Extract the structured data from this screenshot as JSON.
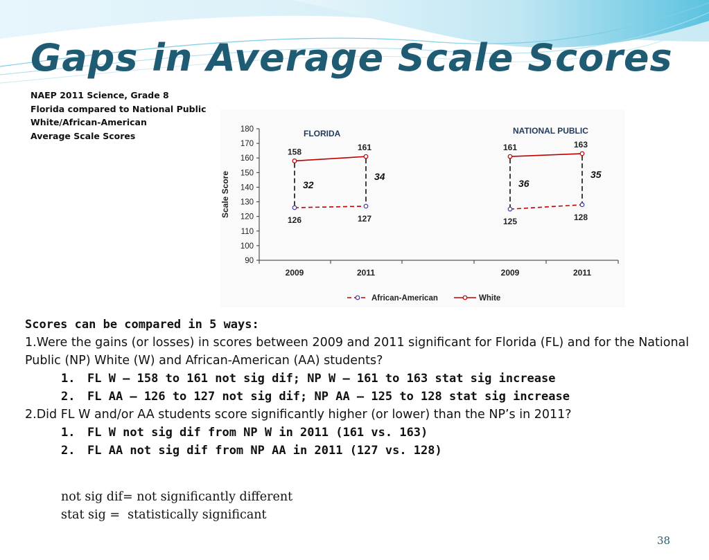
{
  "slide": {
    "title": "Gaps in Average Scale Scores",
    "caption_lines": [
      "NAEP 2011 Science, Grade 8",
      "Florida compared to National Public",
      "White/African-American",
      "Average Scale Scores"
    ],
    "intro": "Scores can be compared in 5 ways:",
    "question1": "1.Were the gains (or losses) in scores between 2009 and 2011 significant for Florida (FL) and for the National Public (NP) White (W) and African-American (AA) students?",
    "q1_answers": [
      {
        "num": "1.",
        "text": "FL W – 158 to 161 not sig dif; NP W – 161 to 163 stat sig increase"
      },
      {
        "num": "2.",
        "text": "FL AA – 126 to 127 not sig dif;  NP AA – 125 to 128 stat sig increase"
      }
    ],
    "question2": "2.Did FL W and/or AA students score significantly higher (or lower) than the NP’s in 2011?",
    "q2_answers": [
      {
        "num": "1.",
        "text": "FL W not sig dif from NP W in 2011 (161 vs. 163)"
      },
      {
        "num": "2.",
        "text": "FL AA not sig dif from NP AA in 2011 (127 vs. 128)"
      }
    ],
    "note1": "not sig dif= not significantly different",
    "note2": "stat sig =  statistically significant",
    "page_number": "38",
    "colors": {
      "title": "#1f5c73",
      "white_series": "#c00000",
      "aa_series": "#c00000",
      "aa_marker": "#3a3aa0"
    }
  },
  "chart_data": {
    "type": "line",
    "ylabel": "Scale Score",
    "ylim": [
      90,
      180
    ],
    "yticks": [
      90,
      100,
      110,
      120,
      130,
      140,
      150,
      160,
      170,
      180
    ],
    "groups": [
      {
        "name": "FLORIDA",
        "x": [
          "2009",
          "2011"
        ],
        "series": [
          {
            "name": "White",
            "values": [
              158,
              161
            ]
          },
          {
            "name": "African-American",
            "values": [
              126,
              127
            ]
          }
        ],
        "gaps": [
          "32",
          "34"
        ]
      },
      {
        "name": "NATIONAL PUBLIC",
        "x": [
          "2009",
          "2011"
        ],
        "series": [
          {
            "name": "White",
            "values": [
              161,
              163
            ]
          },
          {
            "name": "African-American",
            "values": [
              125,
              128
            ]
          }
        ],
        "gaps": [
          "36",
          "35"
        ]
      }
    ],
    "legend": [
      "African-American",
      "White"
    ],
    "legend_position": "bottom"
  }
}
